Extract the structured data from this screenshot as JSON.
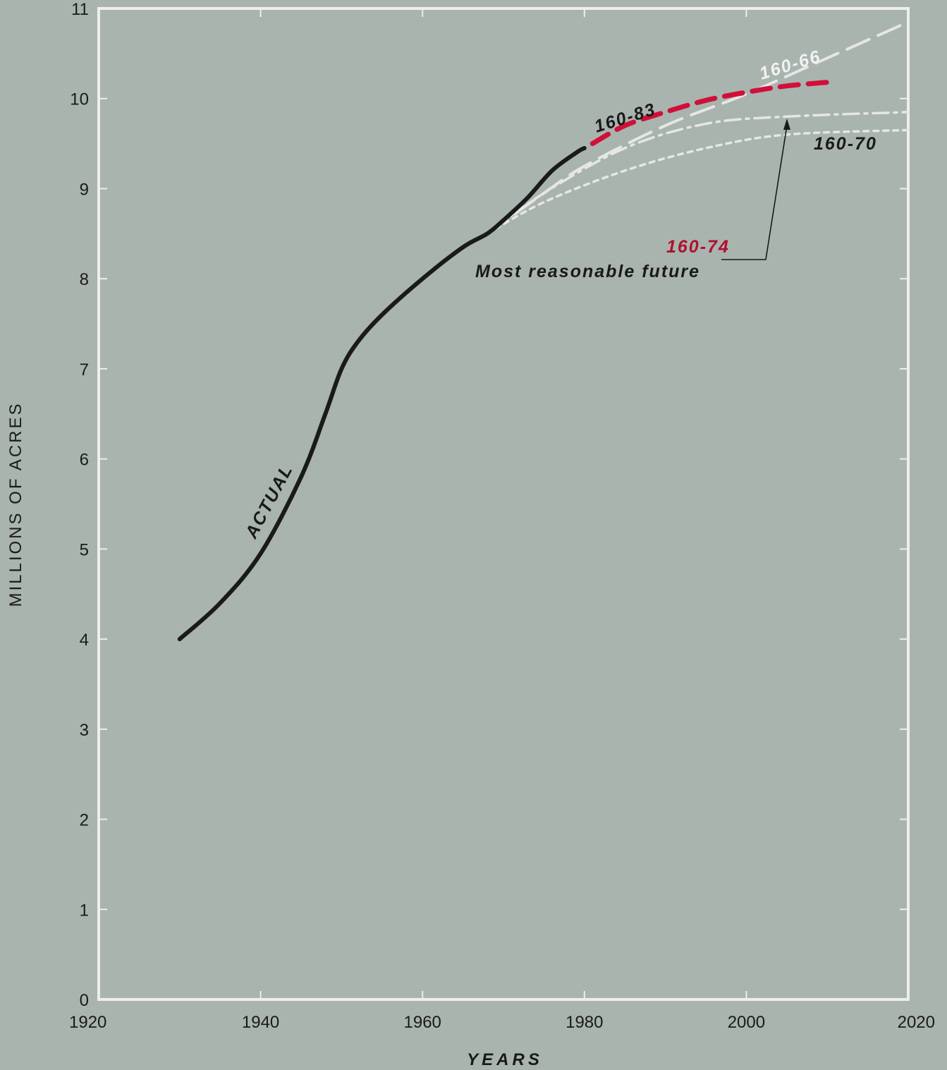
{
  "chart_data": {
    "type": "line",
    "title": "",
    "xlabel": "YEARS",
    "ylabel": "MILLIONS OF ACRES",
    "xlim": [
      1920,
      2020
    ],
    "ylim": [
      0,
      11
    ],
    "x_ticks": [
      1920,
      1940,
      1960,
      1980,
      2000,
      2020
    ],
    "y_ticks": [
      0,
      1,
      2,
      3,
      4,
      5,
      6,
      7,
      8,
      9,
      10,
      11
    ],
    "grid": false,
    "series": [
      {
        "name": "ACTUAL",
        "style": "solid",
        "color": "#1a1a1a",
        "points": [
          [
            1930,
            4.0
          ],
          [
            1935,
            4.4
          ],
          [
            1940,
            4.95
          ],
          [
            1945,
            5.8
          ],
          [
            1948,
            6.5
          ],
          [
            1950,
            7.0
          ],
          [
            1952,
            7.3
          ],
          [
            1955,
            7.6
          ],
          [
            1960,
            8.0
          ],
          [
            1965,
            8.35
          ],
          [
            1968,
            8.5
          ],
          [
            1970,
            8.65
          ],
          [
            1973,
            8.9
          ],
          [
            1976,
            9.2
          ],
          [
            1979,
            9.4
          ],
          [
            1980,
            9.45
          ]
        ]
      },
      {
        "name": "160-83",
        "style": "dashed",
        "color": "#d0103a",
        "points": [
          [
            1981,
            9.5
          ],
          [
            1985,
            9.7
          ],
          [
            1990,
            9.85
          ],
          [
            1995,
            9.98
          ],
          [
            2000,
            10.07
          ],
          [
            2005,
            10.14
          ],
          [
            2010,
            10.18
          ]
        ]
      },
      {
        "name": "160-66",
        "style": "long-dash",
        "color": "#e6e6e6",
        "points": [
          [
            1968,
            8.5
          ],
          [
            1975,
            8.95
          ],
          [
            1980,
            9.25
          ],
          [
            1990,
            9.7
          ],
          [
            2000,
            10.05
          ],
          [
            2010,
            10.45
          ],
          [
            2020,
            10.85
          ]
        ]
      },
      {
        "name": "160-74",
        "style": "dash-dot",
        "color": "#e6e6e6",
        "points": [
          [
            1968,
            8.5
          ],
          [
            1975,
            8.95
          ],
          [
            1985,
            9.45
          ],
          [
            1995,
            9.72
          ],
          [
            2005,
            9.8
          ],
          [
            2020,
            9.85
          ]
        ]
      },
      {
        "name": "160-70",
        "style": "dotted",
        "color": "#e6e6e6",
        "points": [
          [
            1968,
            8.5
          ],
          [
            1975,
            8.85
          ],
          [
            1985,
            9.2
          ],
          [
            1995,
            9.45
          ],
          [
            2005,
            9.6
          ],
          [
            2020,
            9.65
          ]
        ]
      }
    ],
    "annotations": {
      "actual_label": "ACTUAL",
      "label_160_83": "160-83",
      "label_160_66": "160-66",
      "label_160_70": "160-70",
      "label_160_74": "160-74",
      "most_reasonable": "Most reasonable future"
    },
    "colors": {
      "background": "#a9b4ae",
      "frame": "#eeeeee",
      "actual": "#1a1a1a",
      "highlight": "#d0103a"
    }
  }
}
